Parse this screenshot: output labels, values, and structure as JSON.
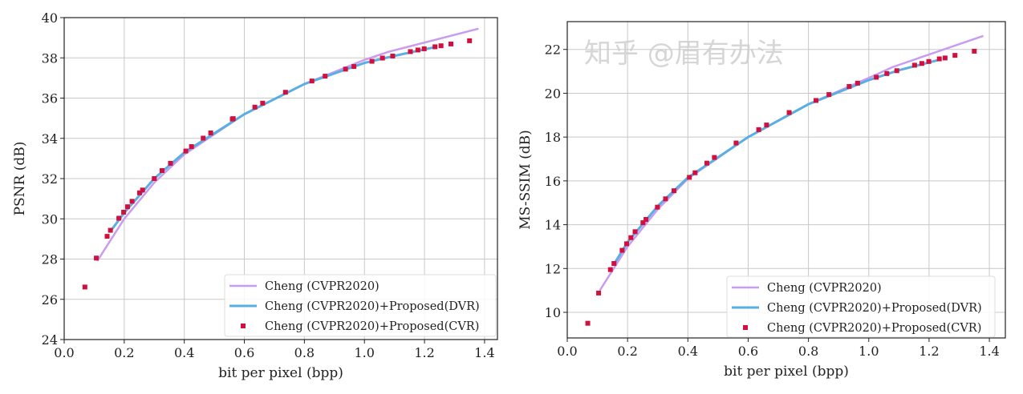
{
  "colors": {
    "cheng": "#c89cf0",
    "dvr": "#5aaee3",
    "cvr": "#d0103f",
    "grid": "#c8c8c8"
  },
  "watermark": "知乎 @眉有办法",
  "chart_data": [
    {
      "type": "line",
      "xlabel": "bit per pixel (bpp)",
      "ylabel": "PSNR (dB)",
      "xlim": [
        0,
        1.443
      ],
      "ylim": [
        24,
        40
      ],
      "xticks": [
        "0.0",
        "0.2",
        "0.4",
        "0.6",
        "0.8",
        "1.0",
        "1.2",
        "1.4"
      ],
      "yticks": [
        "24",
        "26",
        "28",
        "30",
        "32",
        "34",
        "36",
        "38",
        "40"
      ],
      "grid": true,
      "legend_position": "bottom-right",
      "series": [
        {
          "name": "Cheng (CVPR2020)",
          "style": "line",
          "x": [
            0.11,
            0.2,
            0.3,
            0.4,
            0.6,
            0.8,
            1.0,
            1.08,
            1.38
          ],
          "y": [
            27.9,
            30.0,
            31.8,
            33.2,
            35.2,
            36.7,
            37.9,
            38.3,
            39.45
          ]
        },
        {
          "name": "Cheng (CVPR2020)+Proposed(DVR)",
          "style": "line",
          "x": [
            0.155,
            0.2,
            0.3,
            0.4,
            0.6,
            0.8,
            1.0,
            1.1,
            1.24
          ],
          "y": [
            29.4,
            30.3,
            32.0,
            33.3,
            35.2,
            36.7,
            37.75,
            38.1,
            38.55
          ]
        },
        {
          "name": "Cheng (CVPR2020)+Proposed(CVR)",
          "style": "markers",
          "x": [
            0.069,
            0.107,
            0.143,
            0.154,
            0.182,
            0.198,
            0.211,
            0.226,
            0.251,
            0.261,
            0.3,
            0.326,
            0.354,
            0.405,
            0.424,
            0.463,
            0.488,
            0.56,
            0.563,
            0.635,
            0.661,
            0.737,
            0.825,
            0.869,
            0.937,
            0.965,
            1.025,
            1.06,
            1.094,
            1.153,
            1.178,
            1.199,
            1.235,
            1.255,
            1.288,
            1.35
          ],
          "y": [
            26.61,
            28.05,
            29.13,
            29.43,
            30.03,
            30.33,
            30.6,
            30.87,
            31.29,
            31.43,
            32.0,
            32.4,
            32.76,
            33.37,
            33.59,
            34.01,
            34.27,
            34.96,
            34.98,
            35.55,
            35.75,
            36.29,
            36.85,
            37.09,
            37.44,
            37.57,
            37.83,
            37.99,
            38.09,
            38.31,
            38.39,
            38.45,
            38.55,
            38.6,
            38.69,
            38.85
          ]
        }
      ]
    },
    {
      "type": "line",
      "xlabel": "bit per pixel (bpp)",
      "ylabel": "MS-SSIM (dB)",
      "xlim": [
        0,
        1.453
      ],
      "ylim": [
        8.83,
        23.27
      ],
      "xticks": [
        "0.0",
        "0.2",
        "0.4",
        "0.6",
        "0.8",
        "1.0",
        "1.2",
        "1.4"
      ],
      "yticks": [
        "10",
        "12",
        "14",
        "16",
        "18",
        "20",
        "22"
      ],
      "grid": true,
      "legend_position": "bottom-right",
      "series": [
        {
          "name": "Cheng (CVPR2020)",
          "style": "line",
          "x": [
            0.108,
            0.2,
            0.3,
            0.4,
            0.6,
            0.8,
            1.0,
            1.08,
            1.38
          ],
          "y": [
            11.0,
            13.0,
            14.7,
            16.1,
            18.0,
            19.5,
            20.7,
            21.2,
            22.62
          ]
        },
        {
          "name": "Cheng (CVPR2020)+Proposed(DVR)",
          "style": "line",
          "x": [
            0.155,
            0.2,
            0.3,
            0.4,
            0.6,
            0.8,
            1.0,
            1.1,
            1.24
          ],
          "y": [
            12.2,
            13.2,
            14.85,
            16.15,
            18.0,
            19.5,
            20.6,
            21.05,
            21.55
          ]
        },
        {
          "name": "Cheng (CVPR2020)+Proposed(CVR)",
          "style": "markers",
          "x": [
            0.068,
            0.104,
            0.143,
            0.155,
            0.182,
            0.197,
            0.211,
            0.225,
            0.251,
            0.261,
            0.299,
            0.326,
            0.354,
            0.405,
            0.424,
            0.463,
            0.488,
            0.56,
            0.635,
            0.661,
            0.736,
            0.825,
            0.868,
            0.935,
            0.963,
            1.025,
            1.06,
            1.093,
            1.152,
            1.176,
            1.199,
            1.234,
            1.253,
            1.286,
            1.35
          ],
          "y": [
            9.5,
            10.88,
            11.95,
            12.23,
            12.83,
            13.13,
            13.41,
            13.68,
            14.09,
            14.24,
            14.8,
            15.18,
            15.55,
            16.16,
            16.37,
            16.81,
            17.07,
            17.73,
            18.34,
            18.55,
            19.12,
            19.67,
            19.94,
            20.31,
            20.46,
            20.73,
            20.9,
            21.03,
            21.28,
            21.36,
            21.45,
            21.57,
            21.61,
            21.73,
            21.92
          ]
        }
      ]
    }
  ]
}
